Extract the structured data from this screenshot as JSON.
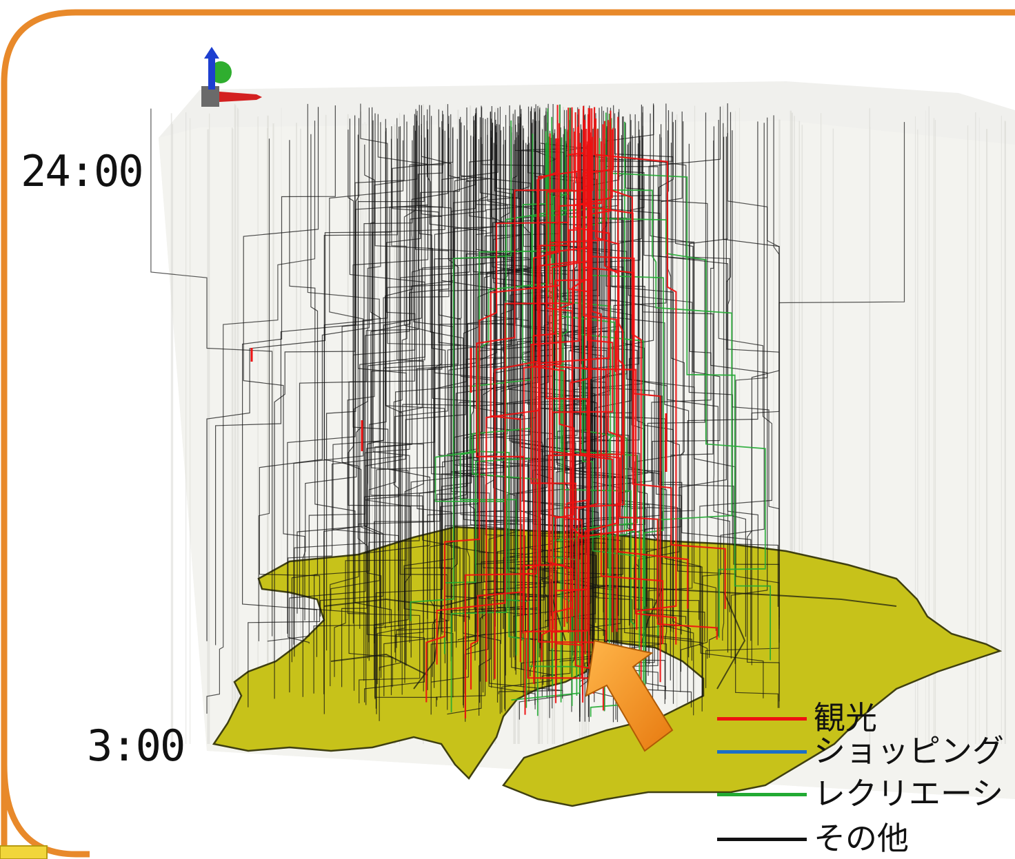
{
  "time_axis": {
    "top_label": "24:00",
    "bottom_label": "3:00"
  },
  "legend": {
    "items": [
      {
        "label": "観光",
        "color": "#ee1111"
      },
      {
        "label": "ショッピング",
        "color": "#1a6fc8"
      },
      {
        "label": "レクリエーシ",
        "color": "#22aa33"
      },
      {
        "label": "その他",
        "color": "#111111"
      }
    ]
  },
  "colors": {
    "frame_orange": "#e8892a",
    "map_fill": "#c7c21a",
    "map_edge": "#3f3f10",
    "arrow": "#f3901c",
    "corner_tab": "#f1d63a"
  },
  "icons": [
    "axes-gizmo-icon",
    "pointer-arrow-icon"
  ]
}
